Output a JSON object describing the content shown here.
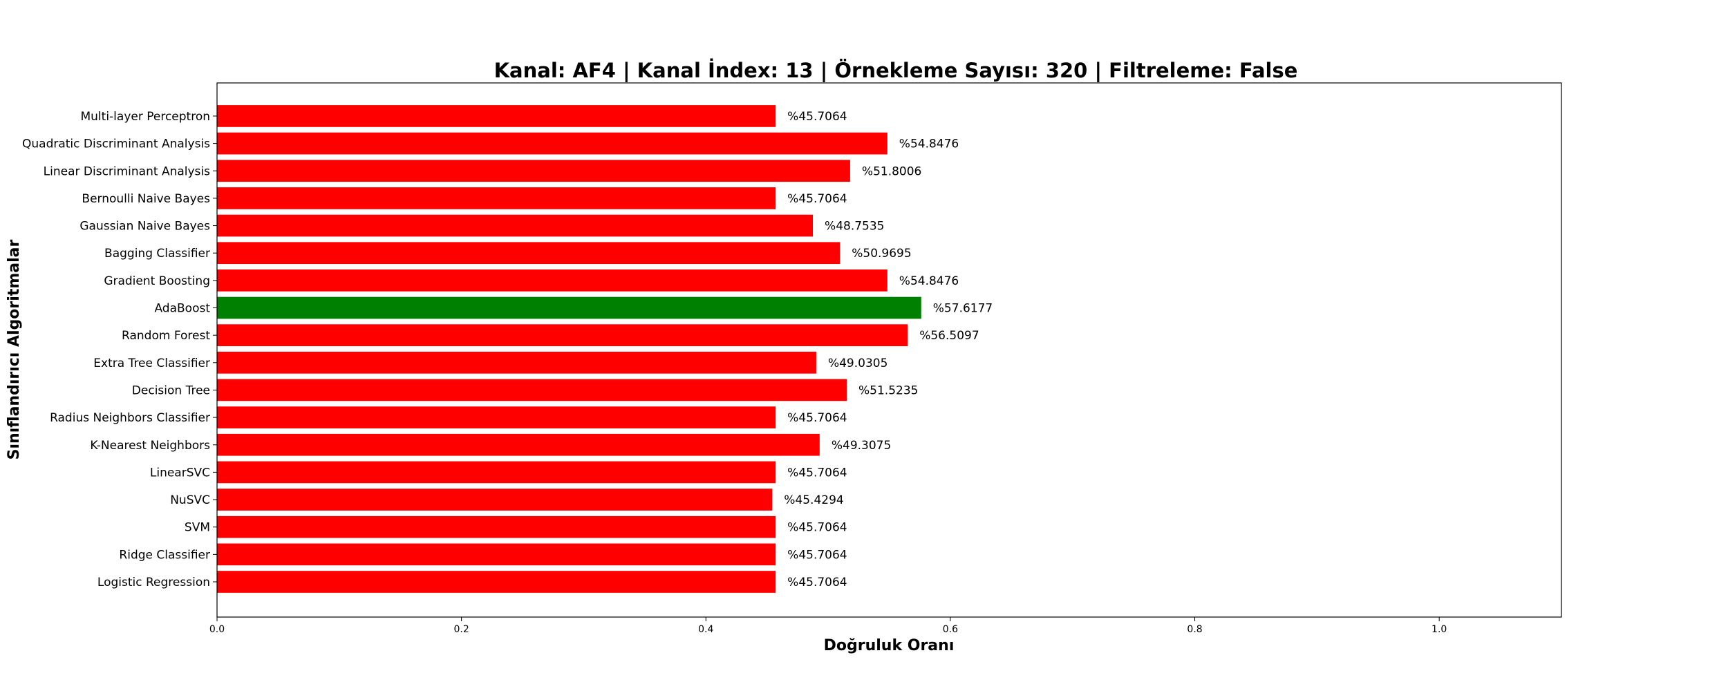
{
  "chart_data": {
    "type": "bar",
    "orientation": "horizontal",
    "title": "Kanal: AF4 | Kanal İndex: 13 | Örnekleme Sayısı: 320 | Filtreleme: False",
    "xlabel": "Doğruluk Oranı",
    "ylabel": "Sınıflandırıcı Algoritmalar",
    "xlim": [
      0,
      1.1
    ],
    "xticks": [
      "0.0",
      "0.2",
      "0.4",
      "0.6",
      "0.8",
      "1.0"
    ],
    "grid": false,
    "categories": [
      "Logistic Regression",
      "Ridge Classifier",
      "SVM",
      "NuSVC",
      "LinearSVC",
      "K-Nearest Neighbors",
      "Radius Neighbors Classifier",
      "Decision Tree",
      "Extra Tree Classifier",
      "Random Forest",
      "AdaBoost",
      "Gradient Boosting",
      "Bagging Classifier",
      "Gaussian Naive Bayes",
      "Bernoulli Naive Bayes",
      "Linear Discriminant Analysis",
      "Quadratic Discriminant Analysis",
      "Multi-layer Perceptron"
    ],
    "values": [
      0.457064,
      0.457064,
      0.457064,
      0.454294,
      0.457064,
      0.493075,
      0.457064,
      0.515235,
      0.490305,
      0.565097,
      0.576177,
      0.548476,
      0.509695,
      0.487535,
      0.457064,
      0.518006,
      0.548476,
      0.457064
    ],
    "value_labels": [
      "%45.7064",
      "%45.7064",
      "%45.7064",
      "%45.4294",
      "%45.7064",
      "%49.3075",
      "%45.7064",
      "%51.5235",
      "%49.0305",
      "%56.5097",
      "%57.6177",
      "%54.8476",
      "%50.9695",
      "%48.7535",
      "%45.7064",
      "%51.8006",
      "%54.8476",
      "%45.7064"
    ],
    "bar_color": "#ff0000",
    "highlight_color": "#008000",
    "highlight_category": "AdaBoost"
  }
}
